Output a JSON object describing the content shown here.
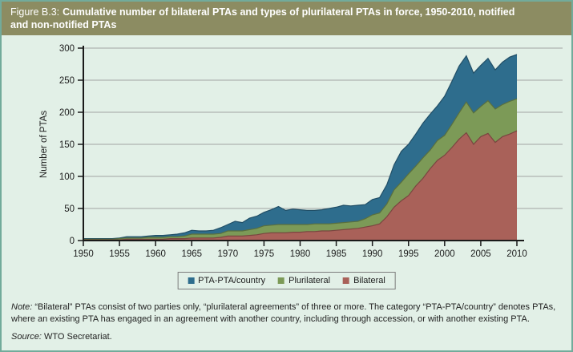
{
  "header": {
    "figure_label": "Figure B.3:",
    "title": "Cumulative number of bilateral PTAs and types of plurilateral PTAs in force, 1950-2010, notified and non-notified PTAs"
  },
  "chart_data": {
    "type": "area",
    "stacked": true,
    "title": "",
    "xlabel": "",
    "ylabel": "Number of PTAs",
    "ylim": [
      0,
      300
    ],
    "yticks": [
      0,
      50,
      100,
      150,
      200,
      250,
      300
    ],
    "xticks": [
      1950,
      1955,
      1960,
      1965,
      1970,
      1975,
      1980,
      1985,
      1990,
      1995,
      2000,
      2005,
      2010
    ],
    "grid": "horizontal",
    "legend_position": "bottom-center",
    "legend_order": [
      "PTA-PTA/country",
      "Plurilateral",
      "Bilateral"
    ],
    "x": [
      1950,
      1951,
      1952,
      1953,
      1954,
      1955,
      1956,
      1957,
      1958,
      1959,
      1960,
      1961,
      1962,
      1963,
      1964,
      1965,
      1966,
      1967,
      1968,
      1969,
      1970,
      1971,
      1972,
      1973,
      1974,
      1975,
      1976,
      1977,
      1978,
      1979,
      1980,
      1981,
      1982,
      1983,
      1984,
      1985,
      1986,
      1987,
      1988,
      1989,
      1990,
      1991,
      1992,
      1993,
      1994,
      1995,
      1996,
      1997,
      1998,
      1999,
      2000,
      2001,
      2002,
      2003,
      2004,
      2005,
      2006,
      2007,
      2008,
      2009,
      2010
    ],
    "series": [
      {
        "name": "Bilateral",
        "color": "#a96159",
        "values": [
          1,
          1,
          1,
          1,
          1,
          1,
          2,
          2,
          2,
          2,
          2,
          2,
          3,
          3,
          3,
          4,
          4,
          4,
          4,
          5,
          7,
          7,
          7,
          8,
          9,
          11,
          12,
          12,
          12,
          13,
          13,
          14,
          14,
          15,
          15,
          16,
          17,
          18,
          19,
          21,
          23,
          26,
          37,
          52,
          62,
          70,
          85,
          97,
          112,
          125,
          133,
          145,
          158,
          168,
          150,
          162,
          167,
          153,
          162,
          166,
          171
        ]
      },
      {
        "name": "Plurilateral",
        "color": "#7c9a57",
        "values": [
          1,
          1,
          1,
          1,
          1,
          2,
          2,
          2,
          2,
          3,
          3,
          3,
          3,
          3,
          4,
          6,
          6,
          6,
          6,
          6,
          8,
          8,
          8,
          9,
          10,
          12,
          12,
          13,
          13,
          12,
          12,
          11,
          12,
          11,
          11,
          11,
          11,
          11,
          11,
          13,
          17,
          17,
          20,
          27,
          29,
          34,
          31,
          32,
          29,
          31,
          31,
          36,
          41,
          48,
          49,
          47,
          51,
          52,
          50,
          51,
          50
        ]
      },
      {
        "name": "PTA-PTA/country",
        "color": "#2e6d8d",
        "values": [
          1,
          1,
          1,
          1,
          1,
          1,
          2,
          2,
          2,
          2,
          3,
          3,
          3,
          4,
          5,
          6,
          5,
          5,
          6,
          9,
          10,
          15,
          13,
          18,
          19,
          21,
          24,
          28,
          22,
          24,
          23,
          22,
          21,
          22,
          24,
          25,
          27,
          25,
          25,
          22,
          24,
          24,
          30,
          39,
          48,
          46,
          50,
          54,
          56,
          54,
          61,
          67,
          73,
          72,
          62,
          64,
          66,
          61,
          66,
          69,
          69
        ]
      }
    ]
  },
  "footer": {
    "note_label": "Note:",
    "note_text": " “Bilateral” PTAs consist of two parties only, “plurilateral agreements” of three or more. The category “PTA-PTA/country” denotes PTAs, where an existing PTA has engaged in an agreement with another country, including through accession, or with another existing PTA.",
    "source_label": "Source:",
    "source_text": " WTO Secretariat."
  },
  "colors": {
    "title_bar_bg": "#8c8c62",
    "title_text": "#ffffff",
    "panel_bg": "#e2f0e7",
    "panel_border": "#72ab9b",
    "grid": "#a3a3a3",
    "axis": "#1a1a1a",
    "tick_text": "#1c1c1c",
    "legend_border": "#7d7d7d",
    "note_text": "#222222",
    "series_bilateral": "#a96159",
    "series_plurilateral": "#7c9a57",
    "series_pta_pta_country": "#2e6d8d"
  }
}
